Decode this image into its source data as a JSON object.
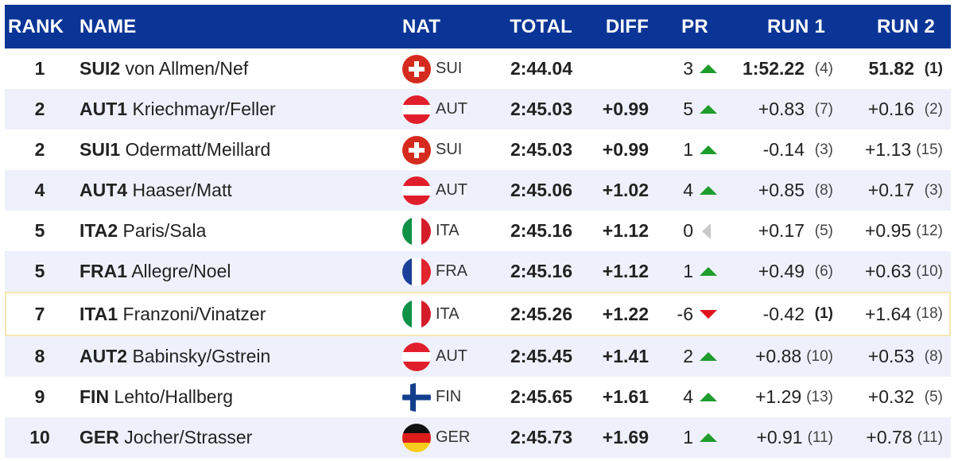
{
  "header": {
    "rank": "RANK",
    "name": "NAME",
    "nat": "NAT",
    "total": "TOTAL",
    "diff": "DIFF",
    "pr": "PR",
    "run1": "RUN 1",
    "run2": "RUN 2"
  },
  "rows": [
    {
      "rank": "1",
      "team": "SUI2",
      "athletes": "von Allmen/Nef",
      "nat": "SUI",
      "flag": "sui",
      "total": "2:44.04",
      "diff": "",
      "pr": "3",
      "pr_dir": "up",
      "run1": "1:52.22",
      "run1_rank": "(4)",
      "run2": "51.82",
      "run2_rank": "(1)"
    },
    {
      "rank": "2",
      "team": "AUT1",
      "athletes": "Kriechmayr/Feller",
      "nat": "AUT",
      "flag": "aut",
      "total": "2:45.03",
      "diff": "+0.99",
      "pr": "5",
      "pr_dir": "up",
      "run1": "+0.83",
      "run1_rank": "(7)",
      "run2": "+0.16",
      "run2_rank": "(2)"
    },
    {
      "rank": "2",
      "team": "SUI1",
      "athletes": "Odermatt/Meillard",
      "nat": "SUI",
      "flag": "sui",
      "total": "2:45.03",
      "diff": "+0.99",
      "pr": "1",
      "pr_dir": "up",
      "run1": "-0.14",
      "run1_rank": "(3)",
      "run2": "+1.13",
      "run2_rank": "(15)"
    },
    {
      "rank": "4",
      "team": "AUT4",
      "athletes": "Haaser/Matt",
      "nat": "AUT",
      "flag": "aut",
      "total": "2:45.06",
      "diff": "+1.02",
      "pr": "4",
      "pr_dir": "up",
      "run1": "+0.85",
      "run1_rank": "(8)",
      "run2": "+0.17",
      "run2_rank": "(3)"
    },
    {
      "rank": "5",
      "team": "ITA2",
      "athletes": "Paris/Sala",
      "nat": "ITA",
      "flag": "ita",
      "total": "2:45.16",
      "diff": "+1.12",
      "pr": "0",
      "pr_dir": "same",
      "run1": "+0.17",
      "run1_rank": "(5)",
      "run2": "+0.95",
      "run2_rank": "(12)"
    },
    {
      "rank": "5",
      "team": "FRA1",
      "athletes": "Allegre/Noel",
      "nat": "FRA",
      "flag": "fra",
      "total": "2:45.16",
      "diff": "+1.12",
      "pr": "1",
      "pr_dir": "up",
      "run1": "+0.49",
      "run1_rank": "(6)",
      "run2": "+0.63",
      "run2_rank": "(10)"
    },
    {
      "rank": "7",
      "team": "ITA1",
      "athletes": "Franzoni/Vinatzer",
      "nat": "ITA",
      "flag": "ita",
      "total": "2:45.26",
      "diff": "+1.22",
      "pr": "-6",
      "pr_dir": "down",
      "run1": "-0.42",
      "run1_rank": "(1)",
      "run2": "+1.64",
      "run2_rank": "(18)",
      "highlight": true
    },
    {
      "rank": "8",
      "team": "AUT2",
      "athletes": "Babinsky/Gstrein",
      "nat": "AUT",
      "flag": "aut",
      "total": "2:45.45",
      "diff": "+1.41",
      "pr": "2",
      "pr_dir": "up",
      "run1": "+0.88",
      "run1_rank": "(10)",
      "run2": "+0.53",
      "run2_rank": "(8)"
    },
    {
      "rank": "9",
      "team": "FIN",
      "athletes": "Lehto/Hallberg",
      "nat": "FIN",
      "flag": "fin",
      "total": "2:45.65",
      "diff": "+1.61",
      "pr": "4",
      "pr_dir": "up",
      "run1": "+1.29",
      "run1_rank": "(13)",
      "run2": "+0.32",
      "run2_rank": "(5)"
    },
    {
      "rank": "10",
      "team": "GER",
      "athletes": "Jocher/Strasser",
      "nat": "GER",
      "flag": "ger",
      "total": "2:45.73",
      "diff": "+1.69",
      "pr": "1",
      "pr_dir": "up",
      "run1": "+0.91",
      "run1_rank": "(11)",
      "run2": "+0.78",
      "run2_rank": "(11)"
    }
  ],
  "colors": {
    "header_bg": "#0a3596",
    "row_alt_bg": "#eef1fb",
    "highlight_border": "#f6e6b4",
    "up": "#1e9c2c",
    "down": "#e0141c",
    "same": "#c9c9c9"
  }
}
